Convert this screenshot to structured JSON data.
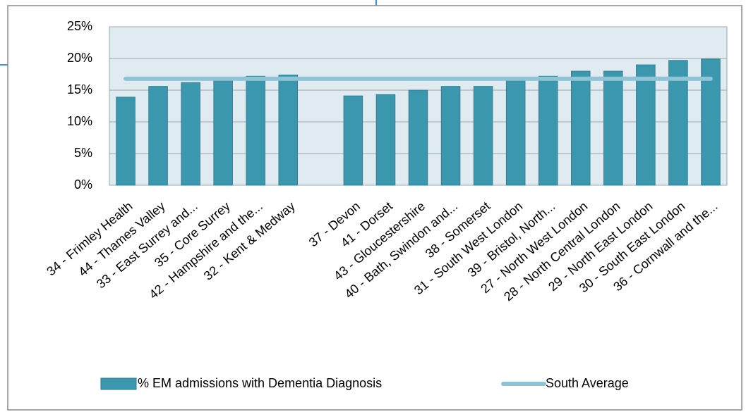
{
  "chart_data": {
    "type": "bar",
    "categories": [
      "34 - Frimley Health",
      "44 - Thames Valley",
      "33 - East Surrey and...",
      "35 - Core Surrey",
      "42 - Hampshire and the...",
      "32 - Kent & Medway",
      null,
      "37 - Devon",
      "41 - Dorset",
      "43 - Gloucestershire",
      "40 - Bath, Swindon and...",
      "38 - Somerset",
      "31 - South West London",
      "39 - Bristol, North...",
      "27 - North West London",
      "28 - North Central London",
      "29 - North East London",
      "30 - South East London",
      "36 - Cornwall and the..."
    ],
    "series": [
      {
        "name": "% EM admissions with Dementia Diagnosis",
        "color": "#3a97ad",
        "type": "bar",
        "values": [
          13.9,
          15.6,
          16.2,
          16.5,
          17.2,
          17.4,
          null,
          14.1,
          14.3,
          15.0,
          15.6,
          15.6,
          16.5,
          17.2,
          18.0,
          18.0,
          19.0,
          19.7,
          19.9
        ]
      },
      {
        "name": "South Average",
        "color": "#8fc3d6",
        "type": "line",
        "values": [
          16.8,
          16.8,
          16.8,
          16.8,
          16.8,
          16.8,
          16.8,
          16.8,
          16.8,
          16.8,
          16.8,
          16.8,
          16.8,
          16.8,
          16.8,
          16.8,
          16.8,
          16.8,
          16.8
        ]
      }
    ],
    "ylim": [
      0,
      25
    ],
    "yticks": [
      {
        "value": 0,
        "label": "0%"
      },
      {
        "value": 5,
        "label": "5%"
      },
      {
        "value": 10,
        "label": "10%"
      },
      {
        "value": 15,
        "label": "15%"
      },
      {
        "value": 20,
        "label": "20%"
      },
      {
        "value": 25,
        "label": "25%"
      }
    ],
    "grid": true,
    "legend": "bottom"
  }
}
